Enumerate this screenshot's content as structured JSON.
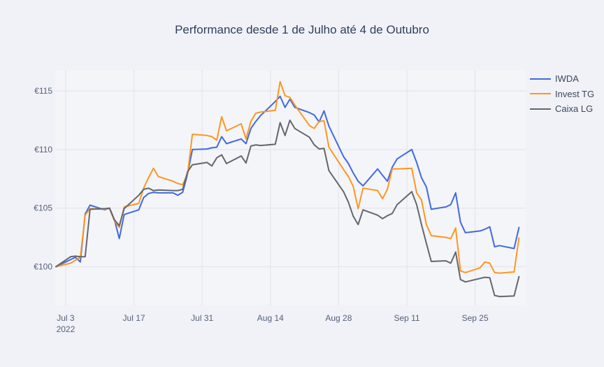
{
  "title": "Performance desde 1 de Julho até 4 de Outubro",
  "style": {
    "paper_bg": "#f1f2f7",
    "plot_bg": "#f4f5f9",
    "grid_color": "#e5e7ef",
    "tick_color": "#54607a",
    "title_color": "#2e3f5c",
    "legend_text_color": "#3b475c"
  },
  "chart_data": {
    "type": "line",
    "title": "Performance desde 1 de Julho até 4 de Outubro",
    "xlabel": "",
    "ylabel": "",
    "grid": true,
    "legend_position": "right",
    "ylim": [
      96.7,
      117.5
    ],
    "y_ticks": [
      {
        "value": 100,
        "label": "€100"
      },
      {
        "value": 105,
        "label": "€105"
      },
      {
        "value": 110,
        "label": "€110"
      },
      {
        "value": 115,
        "label": "€115"
      }
    ],
    "x_ticks": [
      {
        "day": 2,
        "label": "Jul 3",
        "sublabel": "2022"
      },
      {
        "day": 16,
        "label": "Jul 17",
        "sublabel": ""
      },
      {
        "day": 30,
        "label": "Jul 31",
        "sublabel": ""
      },
      {
        "day": 44,
        "label": "Aug 14",
        "sublabel": ""
      },
      {
        "day": 58,
        "label": "Aug 28",
        "sublabel": ""
      },
      {
        "day": 72,
        "label": "Sep 11",
        "sublabel": ""
      },
      {
        "day": 86,
        "label": "Sep 25",
        "sublabel": ""
      }
    ],
    "x": [
      "Jul 1",
      "Jul 4",
      "Jul 5",
      "Jul 6",
      "Jul 7",
      "Jul 8",
      "Jul 11",
      "Jul 12",
      "Jul 13",
      "Jul 14",
      "Jul 15",
      "Jul 18",
      "Jul 19",
      "Jul 20",
      "Jul 21",
      "Jul 22",
      "Jul 25",
      "Jul 26",
      "Jul 27",
      "Jul 28",
      "Jul 29",
      "Aug 1",
      "Aug 2",
      "Aug 3",
      "Aug 4",
      "Aug 5",
      "Aug 8",
      "Aug 9",
      "Aug 10",
      "Aug 11",
      "Aug 12",
      "Aug 15",
      "Aug 16",
      "Aug 17",
      "Aug 18",
      "Aug 19",
      "Aug 22",
      "Aug 23",
      "Aug 24",
      "Aug 25",
      "Aug 26",
      "Aug 29",
      "Aug 30",
      "Aug 31",
      "Sep 1",
      "Sep 2",
      "Sep 5",
      "Sep 6",
      "Sep 7",
      "Sep 8",
      "Sep 9",
      "Sep 12",
      "Sep 13",
      "Sep 14",
      "Sep 15",
      "Sep 16",
      "Sep 19",
      "Sep 20",
      "Sep 21",
      "Sep 22",
      "Sep 23",
      "Sep 26",
      "Sep 27",
      "Sep 28",
      "Sep 29",
      "Sep 30",
      "Oct 3",
      "Oct 4"
    ],
    "day_offsets": [
      0,
      3,
      4,
      5,
      6,
      7,
      10,
      11,
      12,
      13,
      14,
      17,
      18,
      19,
      20,
      21,
      24,
      25,
      26,
      27,
      28,
      31,
      32,
      33,
      34,
      35,
      38,
      39,
      40,
      41,
      42,
      45,
      46,
      47,
      48,
      49,
      52,
      53,
      54,
      55,
      56,
      59,
      60,
      61,
      62,
      63,
      66,
      67,
      68,
      69,
      70,
      73,
      74,
      75,
      76,
      77,
      80,
      81,
      82,
      83,
      84,
      87,
      88,
      89,
      90,
      91,
      94,
      95
    ],
    "series": [
      {
        "name": "IWDA",
        "color": "#4169e1",
        "values": [
          100,
          100.6,
          100.8,
          100.4,
          104.5,
          105.25,
          104.85,
          105,
          104,
          102.4,
          104.45,
          104.85,
          105.9,
          106.25,
          106.35,
          106.3,
          106.3,
          106.1,
          106.35,
          107.9,
          110,
          110.05,
          110.15,
          110.2,
          111.1,
          110.5,
          110.9,
          110.5,
          111.8,
          112.4,
          112.9,
          114.1,
          114.55,
          113.6,
          114.3,
          113.6,
          113.15,
          112.95,
          112.35,
          113.3,
          112,
          109.4,
          108.8,
          108,
          107.3,
          106.9,
          108.35,
          107.8,
          107.3,
          108.5,
          109.2,
          110,
          108.9,
          107.6,
          106.8,
          104.9,
          105.1,
          105.3,
          106.3,
          103.8,
          102.9,
          103.05,
          103.2,
          103.4,
          101.7,
          101.8,
          101.55,
          103.35
        ]
      },
      {
        "name": "Invest TG",
        "color": "#fd9720",
        "values": [
          100,
          100.3,
          100.55,
          100.8,
          104.4,
          104.95,
          104.9,
          104.95,
          103.9,
          103.35,
          105.1,
          105.4,
          106.7,
          107.6,
          108.4,
          107.7,
          107.3,
          107.1,
          107,
          107.9,
          111.3,
          111.2,
          111.1,
          110.8,
          112.8,
          111.6,
          112.2,
          110.9,
          112.4,
          113.1,
          113.2,
          113.35,
          115.8,
          114.6,
          114.45,
          113.8,
          112.05,
          111.8,
          112.4,
          112.45,
          110.2,
          108.3,
          107.7,
          106.85,
          104.95,
          106.7,
          106.5,
          105.8,
          106.6,
          108.35,
          108.35,
          108.4,
          106.3,
          105.7,
          103.6,
          102.65,
          102.5,
          102.4,
          103.3,
          99.65,
          99.5,
          99.9,
          100.4,
          100.3,
          99.5,
          99.45,
          99.55,
          102.45
        ]
      },
      {
        "name": "Caixa LG",
        "color": "#63666d",
        "values": [
          100,
          100.85,
          100.9,
          100.85,
          100.85,
          104.9,
          104.95,
          105,
          104,
          103.5,
          104.95,
          106.1,
          106.6,
          106.7,
          106.5,
          106.55,
          106.5,
          106.5,
          106.6,
          108.1,
          108.7,
          108.9,
          108.6,
          109.3,
          109.55,
          108.8,
          109.45,
          108.85,
          110.3,
          110.4,
          110.35,
          110.45,
          112.3,
          111.2,
          112.5,
          111.8,
          111.05,
          110.4,
          110.05,
          110.1,
          108.2,
          106.4,
          105.5,
          104.3,
          103.6,
          104.85,
          104.4,
          104.1,
          104.35,
          104.55,
          105.3,
          106.4,
          105.3,
          103.6,
          102,
          100.45,
          100.5,
          100.3,
          101.25,
          98.9,
          98.7,
          99,
          99.1,
          99.05,
          97.55,
          97.45,
          97.5,
          99.15
        ]
      }
    ]
  }
}
